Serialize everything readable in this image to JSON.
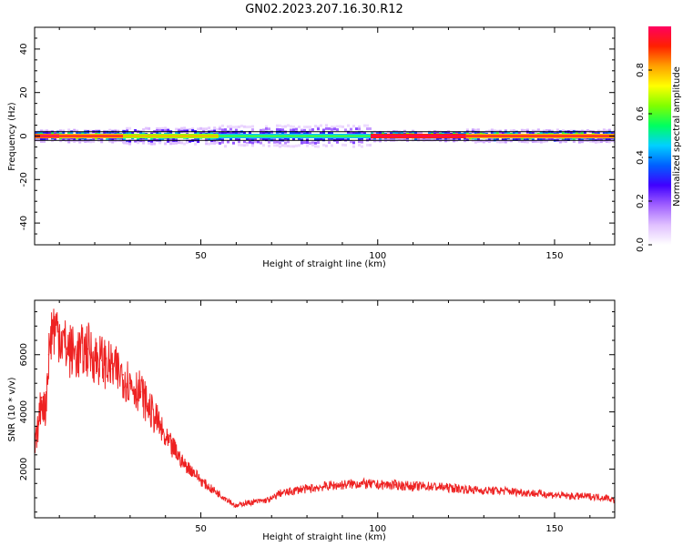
{
  "figure_title": "GN02.2023.207.16.30.R12",
  "colorbar": {
    "label": "Normalized spectral amplitude",
    "ticks": [
      "0.0",
      "0.2",
      "0.4",
      "0.6",
      "0.8"
    ],
    "colors": [
      "#ffffff",
      "#e0c0ff",
      "#a060ff",
      "#4000ff",
      "#0060ff",
      "#00d0ff",
      "#00ff60",
      "#80ff00",
      "#ffff00",
      "#ffa000",
      "#ff2000",
      "#ff0060"
    ]
  },
  "chart_data": [
    {
      "type": "heatmap",
      "xlabel": "Height of straight line (km)",
      "ylabel": "Frequency (Hz)",
      "xlim": [
        3,
        167
      ],
      "ylim": [
        -50,
        50
      ],
      "xticks": [
        50,
        100,
        150
      ],
      "yticks": [
        -40,
        -20,
        0,
        20,
        40
      ],
      "frequency_band_hz": [
        -2,
        2
      ],
      "segments": [
        {
          "x": [
            3,
            10
          ],
          "amplitude": 0.85
        },
        {
          "x": [
            10,
            28
          ],
          "amplitude": 0.8
        },
        {
          "x": [
            28,
            55
          ],
          "amplitude": 0.65
        },
        {
          "x": [
            55,
            98
          ],
          "amplitude": 0.45
        },
        {
          "x": [
            98,
            125
          ],
          "amplitude": 0.9
        },
        {
          "x": [
            125,
            167
          ],
          "amplitude": 0.8
        }
      ]
    },
    {
      "type": "line",
      "xlabel": "Height of straight line (km)",
      "ylabel": "SNR (10 * v/v)",
      "xlim": [
        3,
        167
      ],
      "ylim": [
        300,
        7900
      ],
      "xticks": [
        50,
        100,
        150
      ],
      "yticks": [
        2000,
        4000,
        6000
      ],
      "color": "#ee2222",
      "series": [
        {
          "x": [
            3,
            4,
            5,
            6,
            7,
            8,
            10,
            12,
            15,
            18,
            20,
            22,
            25,
            28,
            30,
            33,
            35,
            38,
            40,
            43,
            45,
            48,
            50,
            53,
            55,
            58,
            60,
            62,
            65,
            68,
            70,
            72,
            75,
            78,
            80,
            85,
            90,
            95,
            100,
            105,
            110,
            115,
            120,
            125,
            130,
            135,
            140,
            145,
            150,
            155,
            160,
            165,
            167
          ],
          "values": [
            2600,
            3500,
            4500,
            4000,
            6000,
            7000,
            6800,
            6200,
            6000,
            6200,
            5900,
            5800,
            5500,
            5300,
            5000,
            4700,
            4200,
            3600,
            3000,
            2600,
            2200,
            1900,
            1600,
            1300,
            1150,
            900,
            700,
            800,
            850,
            900,
            950,
            1150,
            1200,
            1300,
            1300,
            1400,
            1450,
            1500,
            1450,
            1450,
            1400,
            1400,
            1350,
            1300,
            1250,
            1250,
            1200,
            1150,
            1100,
            1050,
            1050,
            1000,
            900
          ]
        }
      ]
    }
  ]
}
